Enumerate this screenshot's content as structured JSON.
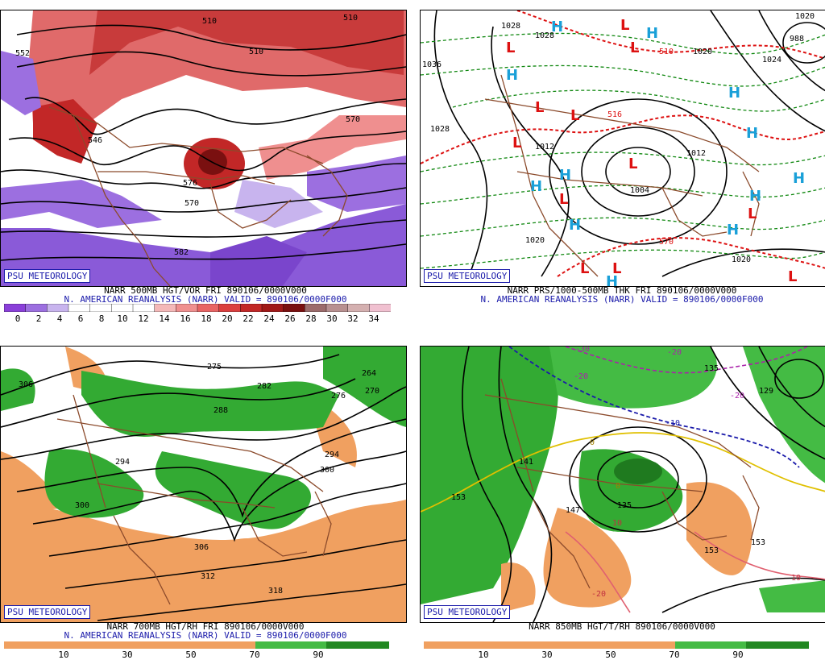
{
  "panels": {
    "tl": {
      "badge": "PSU METEOROLOGY",
      "caption1": "NARR 500MB HGT/VOR FRI 890106/0000V000",
      "caption2": "N. AMERICAN REANALYSIS (NARR) VALID = 890106/0000F000",
      "ticks": [
        "0",
        "2",
        "4",
        "6",
        "8",
        "10",
        "12",
        "14",
        "16",
        "18",
        "20",
        "22",
        "24",
        "26",
        "28",
        "30",
        "32",
        "34"
      ],
      "colors": [
        "#8a3fd9",
        "#9c6fe0",
        "#c8b4ee",
        "#ffffff",
        "#ffffff",
        "#ffffff",
        "#ffffff",
        "#f4b8b8",
        "#ef8f8f",
        "#e86464",
        "#db3e3e",
        "#c22727",
        "#a01818",
        "#7a1010",
        "#9c6b6b",
        "#b89090",
        "#d4b0b0",
        "#f0c0d0"
      ],
      "labels": [
        "552",
        "510",
        "510",
        "570",
        "546",
        "582",
        "576",
        "510",
        "570"
      ]
    },
    "tr": {
      "badge": "PSU METEOROLOGY",
      "caption1": "NARR PRS/1000-500MB THK FRI 890106/0000V000",
      "caption2": "N. AMERICAN REANALYSIS (NARR) VALID = 890106/0000F000",
      "labels": [
        "1028",
        "1028",
        "1036",
        "1028",
        "1012",
        "1012",
        "1004",
        "1020",
        "1020",
        "1020",
        "988",
        "510",
        "516",
        "570",
        "1024",
        "1020"
      ],
      "highs": [
        "H",
        "H",
        "H",
        "H",
        "H",
        "H",
        "H",
        "H",
        "H",
        "H",
        "H",
        "H"
      ],
      "lows": [
        "L",
        "L",
        "L",
        "L",
        "L",
        "L",
        "L",
        "L",
        "L",
        "L",
        "L",
        "L"
      ]
    },
    "bl": {
      "badge": "PSU METEOROLOGY",
      "caption1": "NARR 700MB HGT/RH FRI 890106/0000V000",
      "caption2": "N. AMERICAN REANALYSIS (NARR) VALID = 890106/0000F000",
      "ticks": [
        "10",
        "30",
        "50",
        "70",
        "90"
      ],
      "labels": [
        "306",
        "275",
        "282",
        "264",
        "270",
        "276",
        "288",
        "294",
        "300",
        "306",
        "312",
        "318",
        "294",
        "300"
      ]
    },
    "br": {
      "badge": "PSU METEOROLOGY",
      "caption1": "NARR 850MB HGT/T/RH 890106/0000V000",
      "ticks": [
        "10",
        "30",
        "50",
        "70",
        "90"
      ],
      "labels": [
        "-30",
        "-20",
        "-20",
        "-20",
        "-10",
        "153",
        "141",
        "135",
        "129",
        "147",
        "153",
        "153",
        "135",
        "0",
        "0",
        "10",
        "-20",
        "10"
      ]
    }
  },
  "colors": {
    "badge_blue": "#1a1aaa",
    "vor_red": "#d94040",
    "vor_purple": "#8a5ad8",
    "rh_orange": "#f0a060",
    "rh_green": "#33aa33",
    "border_brown": "#8b4a2b",
    "contour": "#000000",
    "thk_red": "#dd1111",
    "thk_green": "#118811",
    "high_cyan": "#1aa0d8",
    "low_red": "#dd1111"
  }
}
